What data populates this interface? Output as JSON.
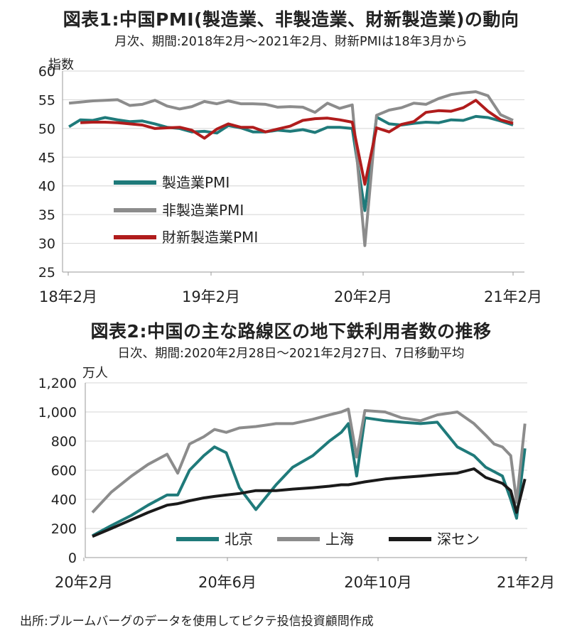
{
  "chart1": {
    "title": "図表1:中国PMI(製造業、非製造業、財新製造業)の動向",
    "subtitle": "月次、期間:2018年2月〜2021年2月、財新PMIは18年3月から",
    "unit": "指数"
  },
  "chart2": {
    "title": "図表2:中国の主な路線区の地下鉄利用者数の推移",
    "subtitle": "日次、期間:2020年2月28日〜2021年2月27日、7日移動平均",
    "unit": "万人"
  },
  "source": "出所:ブルームバーグのデータを使用してピクテ投信投資顧問作成",
  "colors": {
    "teal": "#1f7a7a",
    "gray": "#8c8c8c",
    "red": "#b01c1c",
    "black": "#1a1a1a",
    "grid": "#d4d4d4",
    "axis": "#9a9a9a"
  },
  "chart_data": [
    {
      "type": "line",
      "title": "図表1:中国PMI(製造業、非製造業、財新製造業)の動向",
      "ylabel": "指数",
      "ylim": [
        25,
        60
      ],
      "yticks": [
        "25",
        "30",
        "35",
        "40",
        "45",
        "50",
        "55",
        "60"
      ],
      "xticks": [
        "18年2月",
        "19年2月",
        "20年2月",
        "21年2月"
      ],
      "x": [
        "2018-02",
        "2018-03",
        "2018-04",
        "2018-05",
        "2018-06",
        "2018-07",
        "2018-08",
        "2018-09",
        "2018-10",
        "2018-11",
        "2018-12",
        "2019-01",
        "2019-02",
        "2019-03",
        "2019-04",
        "2019-05",
        "2019-06",
        "2019-07",
        "2019-08",
        "2019-09",
        "2019-10",
        "2019-11",
        "2019-12",
        "2020-01",
        "2020-02",
        "2020-03",
        "2020-04",
        "2020-05",
        "2020-06",
        "2020-07",
        "2020-08",
        "2020-09",
        "2020-10",
        "2020-11",
        "2020-12",
        "2021-01",
        "2021-02"
      ],
      "grid": true,
      "legend_position": "left",
      "series": [
        {
          "name": "製造業PMI",
          "color": "#1f7a7a",
          "values": [
            50.3,
            51.5,
            51.4,
            51.9,
            51.5,
            51.2,
            51.3,
            50.8,
            50.2,
            50.0,
            49.4,
            49.5,
            49.2,
            50.5,
            50.1,
            49.4,
            49.4,
            49.7,
            49.5,
            49.8,
            49.3,
            50.2,
            50.2,
            50.0,
            35.7,
            52.0,
            50.8,
            50.6,
            50.9,
            51.1,
            51.0,
            51.5,
            51.4,
            52.1,
            51.9,
            51.3,
            50.6
          ]
        },
        {
          "name": "非製造業PMI",
          "color": "#8c8c8c",
          "values": [
            54.4,
            54.6,
            54.8,
            54.9,
            55.0,
            54.0,
            54.2,
            54.9,
            53.9,
            53.4,
            53.8,
            54.7,
            54.3,
            54.8,
            54.3,
            54.3,
            54.2,
            53.7,
            53.8,
            53.7,
            52.8,
            54.4,
            53.5,
            54.1,
            29.6,
            52.3,
            53.2,
            53.6,
            54.4,
            54.2,
            55.2,
            55.9,
            56.2,
            56.4,
            55.7,
            52.4,
            51.4
          ]
        },
        {
          "name": "財新製造業PMI",
          "color": "#b01c1c",
          "values": [
            null,
            51.0,
            51.1,
            51.1,
            51.0,
            50.8,
            50.6,
            50.0,
            50.1,
            50.2,
            49.7,
            48.3,
            49.9,
            50.8,
            50.2,
            50.2,
            49.4,
            49.9,
            50.4,
            51.4,
            51.7,
            51.8,
            51.5,
            51.1,
            40.3,
            50.1,
            49.4,
            50.7,
            51.2,
            52.8,
            53.1,
            53.0,
            53.6,
            54.9,
            53.0,
            51.5,
            50.9
          ]
        }
      ]
    },
    {
      "type": "line",
      "title": "図表2:中国の主な路線区の地下鉄利用者数の推移",
      "ylabel": "万人",
      "ylim": [
        0,
        1200
      ],
      "yticks": [
        "0",
        "200",
        "400",
        "600",
        "800",
        "1,000",
        "1,200"
      ],
      "xticks": [
        "20年2月",
        "20年6月",
        "20年10月",
        "21年2月"
      ],
      "x": [
        "2020-02-28",
        "2020-03-15",
        "2020-04-01",
        "2020-04-15",
        "2020-05-01",
        "2020-05-10",
        "2020-05-20",
        "2020-06-01",
        "2020-06-10",
        "2020-06-20",
        "2020-07-01",
        "2020-07-15",
        "2020-08-01",
        "2020-08-15",
        "2020-09-01",
        "2020-09-15",
        "2020-09-25",
        "2020-10-01",
        "2020-10-08",
        "2020-10-15",
        "2020-11-01",
        "2020-11-15",
        "2020-12-01",
        "2020-12-15",
        "2021-01-01",
        "2021-01-15",
        "2021-01-25",
        "2021-02-01",
        "2021-02-08",
        "2021-02-15",
        "2021-02-20",
        "2021-02-27"
      ],
      "grid": true,
      "legend_position": "bottom",
      "series": [
        {
          "name": "北京",
          "color": "#1f7a7a",
          "values": [
            150,
            220,
            290,
            360,
            430,
            430,
            600,
            700,
            760,
            720,
            480,
            330,
            500,
            620,
            700,
            800,
            860,
            920,
            560,
            960,
            940,
            930,
            920,
            930,
            760,
            700,
            620,
            590,
            560,
            400,
            270,
            750
          ]
        },
        {
          "name": "上海",
          "color": "#8c8c8c",
          "values": [
            310,
            450,
            560,
            640,
            710,
            580,
            780,
            830,
            880,
            860,
            890,
            900,
            920,
            920,
            950,
            980,
            1000,
            1020,
            690,
            1010,
            1000,
            960,
            940,
            980,
            1000,
            920,
            840,
            780,
            760,
            700,
            380,
            920
          ]
        },
        {
          "name": "深セン",
          "color": "#1a1a1a",
          "values": [
            145,
            200,
            260,
            310,
            360,
            370,
            390,
            410,
            420,
            430,
            440,
            460,
            460,
            470,
            480,
            490,
            500,
            500,
            510,
            520,
            540,
            550,
            560,
            570,
            580,
            610,
            550,
            530,
            510,
            460,
            310,
            540
          ]
        }
      ]
    }
  ]
}
